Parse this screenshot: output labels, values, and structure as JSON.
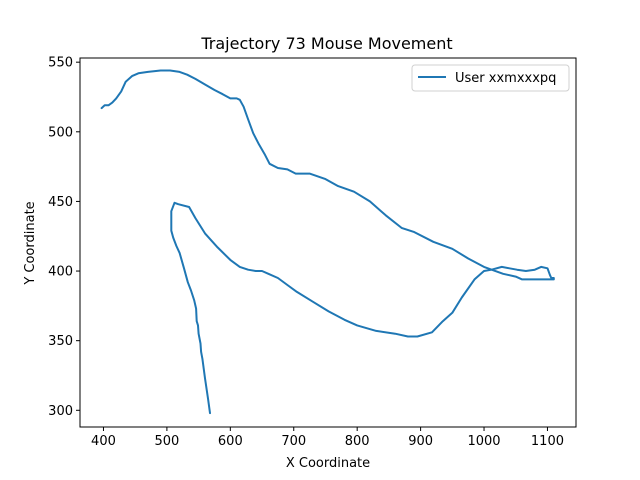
{
  "chart_data": {
    "type": "line",
    "title": "Trajectory 73 Mouse Movement",
    "xlabel": "X Coordinate",
    "ylabel": "Y Coordinate",
    "xlim": [
      363,
      1145
    ],
    "ylim": [
      288,
      553
    ],
    "xticks": [
      400,
      500,
      600,
      700,
      800,
      900,
      1000,
      1100
    ],
    "yticks": [
      300,
      350,
      400,
      450,
      500,
      550
    ],
    "grid": false,
    "legend_position": "upper right",
    "series": [
      {
        "name": "User xxmxxxpq",
        "color": "#1f77b4",
        "points": [
          [
            568,
            298
          ],
          [
            565,
            308
          ],
          [
            560,
            323
          ],
          [
            556,
            337
          ],
          [
            554,
            342
          ],
          [
            553,
            348
          ],
          [
            550,
            355
          ],
          [
            549,
            361
          ],
          [
            547,
            364
          ],
          [
            546,
            373
          ],
          [
            543,
            379
          ],
          [
            538,
            386
          ],
          [
            533,
            392
          ],
          [
            527,
            402
          ],
          [
            520,
            413
          ],
          [
            515,
            418
          ],
          [
            510,
            424
          ],
          [
            507,
            429
          ],
          [
            507,
            437
          ],
          [
            507,
            443
          ],
          [
            512,
            449
          ],
          [
            518,
            448
          ],
          [
            535,
            446
          ],
          [
            545,
            438
          ],
          [
            560,
            427
          ],
          [
            580,
            417
          ],
          [
            600,
            408
          ],
          [
            615,
            403
          ],
          [
            628,
            401
          ],
          [
            640,
            400
          ],
          [
            650,
            400
          ],
          [
            660,
            398
          ],
          [
            675,
            395
          ],
          [
            690,
            390
          ],
          [
            705,
            385
          ],
          [
            730,
            378
          ],
          [
            755,
            371
          ],
          [
            780,
            365
          ],
          [
            800,
            361
          ],
          [
            830,
            357
          ],
          [
            860,
            355
          ],
          [
            880,
            353
          ],
          [
            895,
            353
          ],
          [
            918,
            356
          ],
          [
            935,
            364
          ],
          [
            950,
            370
          ],
          [
            965,
            381
          ],
          [
            985,
            394
          ],
          [
            1000,
            400
          ],
          [
            1012,
            401
          ],
          [
            1028,
            403
          ],
          [
            1040,
            402
          ],
          [
            1052,
            401
          ],
          [
            1066,
            400
          ],
          [
            1080,
            401
          ],
          [
            1090,
            403
          ],
          [
            1100,
            402
          ],
          [
            1104,
            397
          ],
          [
            1106,
            395
          ],
          [
            1110,
            395
          ],
          [
            1110,
            394
          ],
          [
            1095,
            394
          ],
          [
            1075,
            394
          ],
          [
            1060,
            394
          ],
          [
            1050,
            396
          ],
          [
            1030,
            398
          ],
          [
            1000,
            403
          ],
          [
            975,
            409
          ],
          [
            950,
            416
          ],
          [
            920,
            421
          ],
          [
            890,
            428
          ],
          [
            870,
            431
          ],
          [
            845,
            440
          ],
          [
            820,
            450
          ],
          [
            795,
            457
          ],
          [
            770,
            461
          ],
          [
            750,
            466
          ],
          [
            725,
            470
          ],
          [
            703,
            470
          ],
          [
            690,
            473
          ],
          [
            675,
            474
          ],
          [
            662,
            477
          ],
          [
            654,
            484
          ],
          [
            645,
            491
          ],
          [
            636,
            499
          ],
          [
            628,
            509
          ],
          [
            621,
            518
          ],
          [
            615,
            523
          ],
          [
            610,
            524
          ],
          [
            605,
            524
          ],
          [
            600,
            524
          ],
          [
            588,
            527
          ],
          [
            575,
            530
          ],
          [
            560,
            534
          ],
          [
            545,
            538
          ],
          [
            532,
            541
          ],
          [
            520,
            543
          ],
          [
            505,
            544
          ],
          [
            490,
            544
          ],
          [
            470,
            543
          ],
          [
            455,
            542
          ],
          [
            445,
            540
          ],
          [
            435,
            536
          ],
          [
            428,
            529
          ],
          [
            420,
            524
          ],
          [
            414,
            521
          ],
          [
            408,
            519
          ],
          [
            402,
            519
          ],
          [
            397,
            517
          ]
        ]
      }
    ]
  }
}
